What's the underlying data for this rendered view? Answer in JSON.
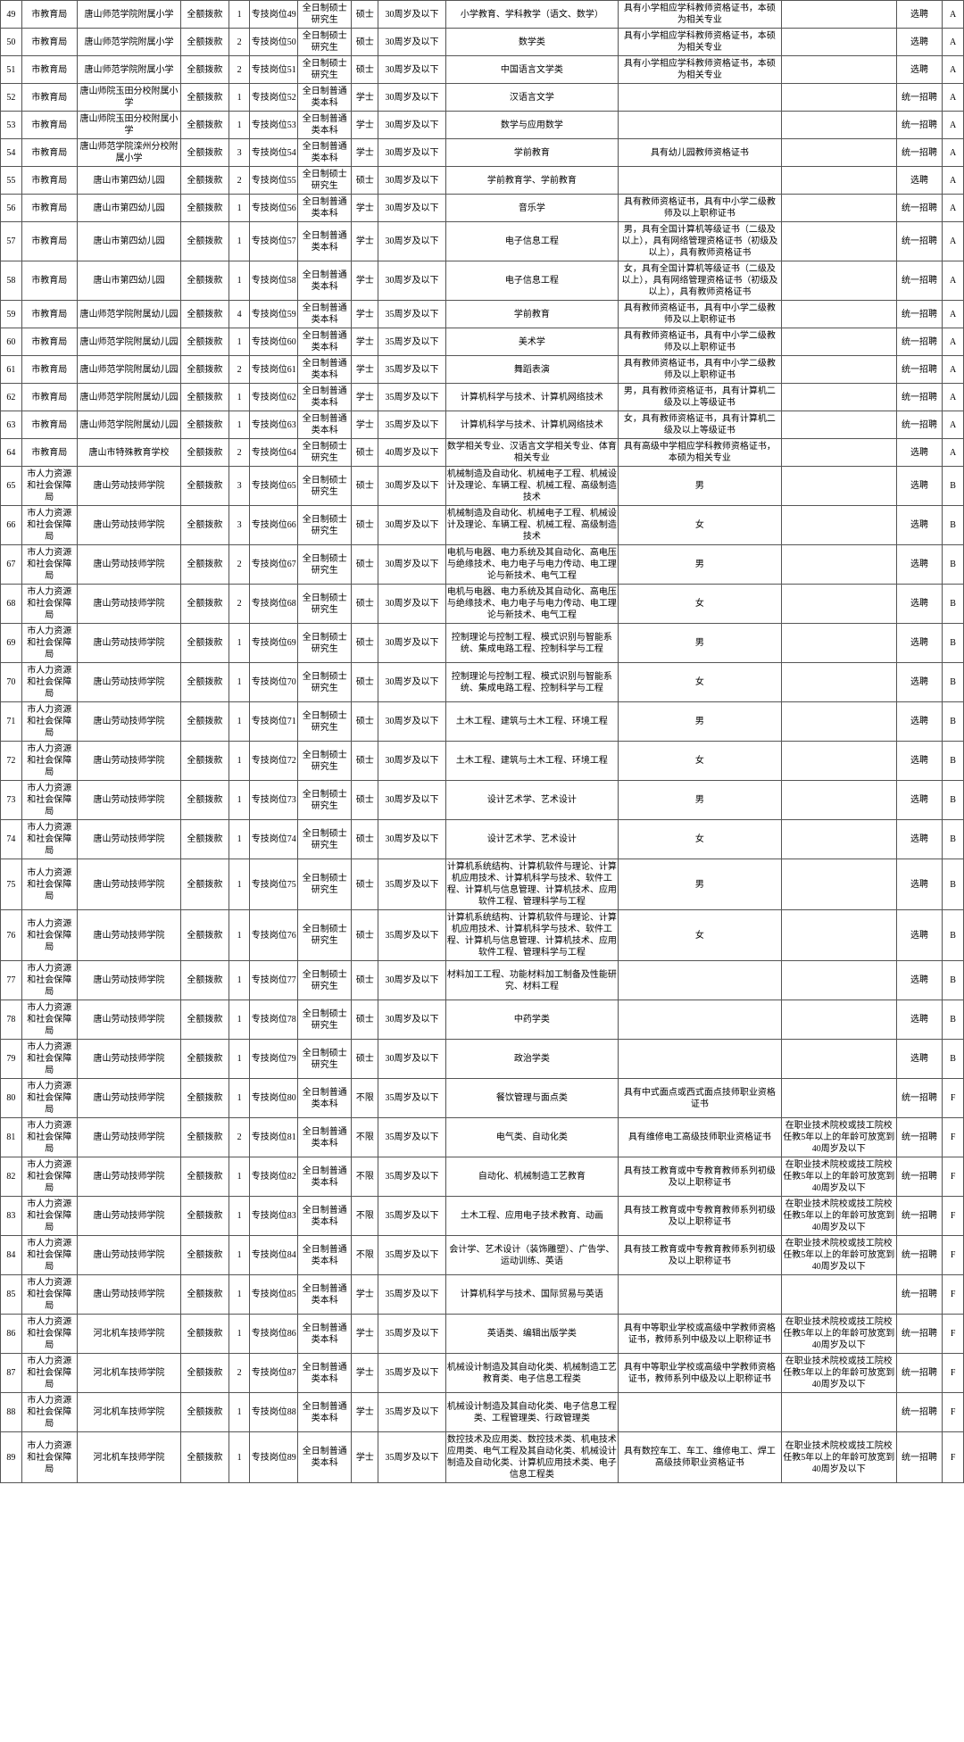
{
  "rows": [
    {
      "n": "49",
      "d": "市教育局",
      "u": "唐山师范学院附属小学",
      "f": "全额拨款",
      "c": "1",
      "p": "专技岗位49",
      "e": "全日制硕士研究生",
      "deg": "硕士",
      "age": "30周岁及以下",
      "maj": "小学教育、学科教学（语文、数学）",
      "req": "具有小学相应学科教师资格证书，本硕为相关专业",
      "rem": "",
      "m": "选聘",
      "g": "A"
    },
    {
      "n": "50",
      "d": "市教育局",
      "u": "唐山师范学院附属小学",
      "f": "全额拨款",
      "c": "2",
      "p": "专技岗位50",
      "e": "全日制硕士研究生",
      "deg": "硕士",
      "age": "30周岁及以下",
      "maj": "数学类",
      "req": "具有小学相应学科教师资格证书，本硕为相关专业",
      "rem": "",
      "m": "选聘",
      "g": "A"
    },
    {
      "n": "51",
      "d": "市教育局",
      "u": "唐山师范学院附属小学",
      "f": "全额拨款",
      "c": "2",
      "p": "专技岗位51",
      "e": "全日制硕士研究生",
      "deg": "硕士",
      "age": "30周岁及以下",
      "maj": "中国语言文学类",
      "req": "具有小学相应学科教师资格证书，本硕为相关专业",
      "rem": "",
      "m": "选聘",
      "g": "A"
    },
    {
      "n": "52",
      "d": "市教育局",
      "u": "唐山师院玉田分校附属小学",
      "f": "全额拨款",
      "c": "1",
      "p": "专技岗位52",
      "e": "全日制普通类本科",
      "deg": "学士",
      "age": "30周岁及以下",
      "maj": "汉语言文学",
      "req": "",
      "rem": "",
      "m": "统一招聘",
      "g": "A"
    },
    {
      "n": "53",
      "d": "市教育局",
      "u": "唐山师院玉田分校附属小学",
      "f": "全额拨款",
      "c": "1",
      "p": "专技岗位53",
      "e": "全日制普通类本科",
      "deg": "学士",
      "age": "30周岁及以下",
      "maj": "数学与应用数学",
      "req": "",
      "rem": "",
      "m": "统一招聘",
      "g": "A"
    },
    {
      "n": "54",
      "d": "市教育局",
      "u": "唐山师范学院滦州分校附属小学",
      "f": "全额拨款",
      "c": "3",
      "p": "专技岗位54",
      "e": "全日制普通类本科",
      "deg": "学士",
      "age": "30周岁及以下",
      "maj": "学前教育",
      "req": "具有幼儿园教师资格证书",
      "rem": "",
      "m": "统一招聘",
      "g": "A"
    },
    {
      "n": "55",
      "d": "市教育局",
      "u": "唐山市第四幼儿园",
      "f": "全额拨款",
      "c": "2",
      "p": "专技岗位55",
      "e": "全日制硕士研究生",
      "deg": "硕士",
      "age": "30周岁及以下",
      "maj": "学前教育学、学前教育",
      "req": "",
      "rem": "",
      "m": "选聘",
      "g": "A"
    },
    {
      "n": "56",
      "d": "市教育局",
      "u": "唐山市第四幼儿园",
      "f": "全额拨款",
      "c": "1",
      "p": "专技岗位56",
      "e": "全日制普通类本科",
      "deg": "学士",
      "age": "30周岁及以下",
      "maj": "音乐学",
      "req": "具有教师资格证书，具有中小学二级教师及以上职称证书",
      "rem": "",
      "m": "统一招聘",
      "g": "A"
    },
    {
      "n": "57",
      "d": "市教育局",
      "u": "唐山市第四幼儿园",
      "f": "全额拨款",
      "c": "1",
      "p": "专技岗位57",
      "e": "全日制普通类本科",
      "deg": "学士",
      "age": "30周岁及以下",
      "maj": "电子信息工程",
      "req": "男，具有全国计算机等级证书（二级及以上），具有网络管理资格证书（初级及以上），具有教师资格证书",
      "rem": "",
      "m": "统一招聘",
      "g": "A"
    },
    {
      "n": "58",
      "d": "市教育局",
      "u": "唐山市第四幼儿园",
      "f": "全额拨款",
      "c": "1",
      "p": "专技岗位58",
      "e": "全日制普通类本科",
      "deg": "学士",
      "age": "30周岁及以下",
      "maj": "电子信息工程",
      "req": "女，具有全国计算机等级证书（二级及以上），具有网络管理资格证书（初级及以上），具有教师资格证书",
      "rem": "",
      "m": "统一招聘",
      "g": "A"
    },
    {
      "n": "59",
      "d": "市教育局",
      "u": "唐山师范学院附属幼儿园",
      "f": "全额拨款",
      "c": "4",
      "p": "专技岗位59",
      "e": "全日制普通类本科",
      "deg": "学士",
      "age": "35周岁及以下",
      "maj": "学前教育",
      "req": "具有教师资格证书，具有中小学二级教师及以上职称证书",
      "rem": "",
      "m": "统一招聘",
      "g": "A"
    },
    {
      "n": "60",
      "d": "市教育局",
      "u": "唐山师范学院附属幼儿园",
      "f": "全额拨款",
      "c": "1",
      "p": "专技岗位60",
      "e": "全日制普通类本科",
      "deg": "学士",
      "age": "35周岁及以下",
      "maj": "美术学",
      "req": "具有教师资格证书，具有中小学二级教师及以上职称证书",
      "rem": "",
      "m": "统一招聘",
      "g": "A"
    },
    {
      "n": "61",
      "d": "市教育局",
      "u": "唐山师范学院附属幼儿园",
      "f": "全额拨款",
      "c": "2",
      "p": "专技岗位61",
      "e": "全日制普通类本科",
      "deg": "学士",
      "age": "35周岁及以下",
      "maj": "舞蹈表演",
      "req": "具有教师资格证书，具有中小学二级教师及以上职称证书",
      "rem": "",
      "m": "统一招聘",
      "g": "A"
    },
    {
      "n": "62",
      "d": "市教育局",
      "u": "唐山师范学院附属幼儿园",
      "f": "全额拨款",
      "c": "1",
      "p": "专技岗位62",
      "e": "全日制普通类本科",
      "deg": "学士",
      "age": "35周岁及以下",
      "maj": "计算机科学与技术、计算机网络技术",
      "req": "男，具有教师资格证书，具有计算机二级及以上等级证书",
      "rem": "",
      "m": "统一招聘",
      "g": "A"
    },
    {
      "n": "63",
      "d": "市教育局",
      "u": "唐山师范学院附属幼儿园",
      "f": "全额拨款",
      "c": "1",
      "p": "专技岗位63",
      "e": "全日制普通类本科",
      "deg": "学士",
      "age": "35周岁及以下",
      "maj": "计算机科学与技术、计算机网络技术",
      "req": "女，具有教师资格证书，具有计算机二级及以上等级证书",
      "rem": "",
      "m": "统一招聘",
      "g": "A"
    },
    {
      "n": "64",
      "d": "市教育局",
      "u": "唐山市特殊教育学校",
      "f": "全额拨款",
      "c": "2",
      "p": "专技岗位64",
      "e": "全日制硕士研究生",
      "deg": "硕士",
      "age": "40周岁及以下",
      "maj": "数学相关专业、汉语言文学相关专业、体育相关专业",
      "req": "具有高级中学相应学科教师资格证书，本硕为相关专业",
      "rem": "",
      "m": "选聘",
      "g": "A"
    },
    {
      "n": "65",
      "d": "市人力资源和社会保障局",
      "u": "唐山劳动技师学院",
      "f": "全额拨款",
      "c": "3",
      "p": "专技岗位65",
      "e": "全日制硕士研究生",
      "deg": "硕士",
      "age": "30周岁及以下",
      "maj": "机械制造及自动化、机械电子工程、机械设计及理论、车辆工程、机械工程、高级制造技术",
      "req": "男",
      "rem": "",
      "m": "选聘",
      "g": "B"
    },
    {
      "n": "66",
      "d": "市人力资源和社会保障局",
      "u": "唐山劳动技师学院",
      "f": "全额拨款",
      "c": "3",
      "p": "专技岗位66",
      "e": "全日制硕士研究生",
      "deg": "硕士",
      "age": "30周岁及以下",
      "maj": "机械制造及自动化、机械电子工程、机械设计及理论、车辆工程、机械工程、高级制造技术",
      "req": "女",
      "rem": "",
      "m": "选聘",
      "g": "B"
    },
    {
      "n": "67",
      "d": "市人力资源和社会保障局",
      "u": "唐山劳动技师学院",
      "f": "全额拨款",
      "c": "2",
      "p": "专技岗位67",
      "e": "全日制硕士研究生",
      "deg": "硕士",
      "age": "30周岁及以下",
      "maj": "电机与电器、电力系统及其自动化、高电压与绝缘技术、电力电子与电力传动、电工理论与新技术、电气工程",
      "req": "男",
      "rem": "",
      "m": "选聘",
      "g": "B"
    },
    {
      "n": "68",
      "d": "市人力资源和社会保障局",
      "u": "唐山劳动技师学院",
      "f": "全额拨款",
      "c": "2",
      "p": "专技岗位68",
      "e": "全日制硕士研究生",
      "deg": "硕士",
      "age": "30周岁及以下",
      "maj": "电机与电器、电力系统及其自动化、高电压与绝缘技术、电力电子与电力传动、电工理论与新技术、电气工程",
      "req": "女",
      "rem": "",
      "m": "选聘",
      "g": "B"
    },
    {
      "n": "69",
      "d": "市人力资源和社会保障局",
      "u": "唐山劳动技师学院",
      "f": "全额拨款",
      "c": "1",
      "p": "专技岗位69",
      "e": "全日制硕士研究生",
      "deg": "硕士",
      "age": "30周岁及以下",
      "maj": "控制理论与控制工程、模式识别与智能系统、集成电路工程、控制科学与工程",
      "req": "男",
      "rem": "",
      "m": "选聘",
      "g": "B"
    },
    {
      "n": "70",
      "d": "市人力资源和社会保障局",
      "u": "唐山劳动技师学院",
      "f": "全额拨款",
      "c": "1",
      "p": "专技岗位70",
      "e": "全日制硕士研究生",
      "deg": "硕士",
      "age": "30周岁及以下",
      "maj": "控制理论与控制工程、模式识别与智能系统、集成电路工程、控制科学与工程",
      "req": "女",
      "rem": "",
      "m": "选聘",
      "g": "B"
    },
    {
      "n": "71",
      "d": "市人力资源和社会保障局",
      "u": "唐山劳动技师学院",
      "f": "全额拨款",
      "c": "1",
      "p": "专技岗位71",
      "e": "全日制硕士研究生",
      "deg": "硕士",
      "age": "30周岁及以下",
      "maj": "土木工程、建筑与土木工程、环境工程",
      "req": "男",
      "rem": "",
      "m": "选聘",
      "g": "B"
    },
    {
      "n": "72",
      "d": "市人力资源和社会保障局",
      "u": "唐山劳动技师学院",
      "f": "全额拨款",
      "c": "1",
      "p": "专技岗位72",
      "e": "全日制硕士研究生",
      "deg": "硕士",
      "age": "30周岁及以下",
      "maj": "土木工程、建筑与土木工程、环境工程",
      "req": "女",
      "rem": "",
      "m": "选聘",
      "g": "B"
    },
    {
      "n": "73",
      "d": "市人力资源和社会保障局",
      "u": "唐山劳动技师学院",
      "f": "全额拨款",
      "c": "1",
      "p": "专技岗位73",
      "e": "全日制硕士研究生",
      "deg": "硕士",
      "age": "30周岁及以下",
      "maj": "设计艺术学、艺术设计",
      "req": "男",
      "rem": "",
      "m": "选聘",
      "g": "B"
    },
    {
      "n": "74",
      "d": "市人力资源和社会保障局",
      "u": "唐山劳动技师学院",
      "f": "全额拨款",
      "c": "1",
      "p": "专技岗位74",
      "e": "全日制硕士研究生",
      "deg": "硕士",
      "age": "30周岁及以下",
      "maj": "设计艺术学、艺术设计",
      "req": "女",
      "rem": "",
      "m": "选聘",
      "g": "B"
    },
    {
      "n": "75",
      "d": "市人力资源和社会保障局",
      "u": "唐山劳动技师学院",
      "f": "全额拨款",
      "c": "1",
      "p": "专技岗位75",
      "e": "全日制硕士研究生",
      "deg": "硕士",
      "age": "35周岁及以下",
      "maj": "计算机系统结构、计算机软件与理论、计算机应用技术、计算机科学与技术、软件工程、计算机与信息管理、计算机技术、应用软件工程、管理科学与工程",
      "req": "男",
      "rem": "",
      "m": "选聘",
      "g": "B"
    },
    {
      "n": "76",
      "d": "市人力资源和社会保障局",
      "u": "唐山劳动技师学院",
      "f": "全额拨款",
      "c": "1",
      "p": "专技岗位76",
      "e": "全日制硕士研究生",
      "deg": "硕士",
      "age": "35周岁及以下",
      "maj": "计算机系统结构、计算机软件与理论、计算机应用技术、计算机科学与技术、软件工程、计算机与信息管理、计算机技术、应用软件工程、管理科学与工程",
      "req": "女",
      "rem": "",
      "m": "选聘",
      "g": "B"
    },
    {
      "n": "77",
      "d": "市人力资源和社会保障局",
      "u": "唐山劳动技师学院",
      "f": "全额拨款",
      "c": "1",
      "p": "专技岗位77",
      "e": "全日制硕士研究生",
      "deg": "硕士",
      "age": "30周岁及以下",
      "maj": "材料加工工程、功能材料加工制备及性能研究、材料工程",
      "req": "",
      "rem": "",
      "m": "选聘",
      "g": "B"
    },
    {
      "n": "78",
      "d": "市人力资源和社会保障局",
      "u": "唐山劳动技师学院",
      "f": "全额拨款",
      "c": "1",
      "p": "专技岗位78",
      "e": "全日制硕士研究生",
      "deg": "硕士",
      "age": "30周岁及以下",
      "maj": "中药学类",
      "req": "",
      "rem": "",
      "m": "选聘",
      "g": "B"
    },
    {
      "n": "79",
      "d": "市人力资源和社会保障局",
      "u": "唐山劳动技师学院",
      "f": "全额拨款",
      "c": "1",
      "p": "专技岗位79",
      "e": "全日制硕士研究生",
      "deg": "硕士",
      "age": "30周岁及以下",
      "maj": "政治学类",
      "req": "",
      "rem": "",
      "m": "选聘",
      "g": "B"
    },
    {
      "n": "80",
      "d": "市人力资源和社会保障局",
      "u": "唐山劳动技师学院",
      "f": "全额拨款",
      "c": "1",
      "p": "专技岗位80",
      "e": "全日制普通类本科",
      "deg": "不限",
      "age": "35周岁及以下",
      "maj": "餐饮管理与面点类",
      "req": "具有中式面点或西式面点技师职业资格证书",
      "rem": "",
      "m": "统一招聘",
      "g": "F"
    },
    {
      "n": "81",
      "d": "市人力资源和社会保障局",
      "u": "唐山劳动技师学院",
      "f": "全额拨款",
      "c": "2",
      "p": "专技岗位81",
      "e": "全日制普通类本科",
      "deg": "不限",
      "age": "35周岁及以下",
      "maj": "电气类、自动化类",
      "req": "具有维修电工高级技师职业资格证书",
      "rem": "在职业技术院校或技工院校任教5年以上的年龄可放宽到40周岁及以下",
      "m": "统一招聘",
      "g": "F"
    },
    {
      "n": "82",
      "d": "市人力资源和社会保障局",
      "u": "唐山劳动技师学院",
      "f": "全额拨款",
      "c": "1",
      "p": "专技岗位82",
      "e": "全日制普通类本科",
      "deg": "不限",
      "age": "35周岁及以下",
      "maj": "自动化、机械制造工艺教育",
      "req": "具有技工教育或中专教育教师系列初级及以上职称证书",
      "rem": "在职业技术院校或技工院校任教5年以上的年龄可放宽到40周岁及以下",
      "m": "统一招聘",
      "g": "F"
    },
    {
      "n": "83",
      "d": "市人力资源和社会保障局",
      "u": "唐山劳动技师学院",
      "f": "全额拨款",
      "c": "1",
      "p": "专技岗位83",
      "e": "全日制普通类本科",
      "deg": "不限",
      "age": "35周岁及以下",
      "maj": "土木工程、应用电子技术教育、动画",
      "req": "具有技工教育或中专教育教师系列初级及以上职称证书",
      "rem": "在职业技术院校或技工院校任教5年以上的年龄可放宽到40周岁及以下",
      "m": "统一招聘",
      "g": "F"
    },
    {
      "n": "84",
      "d": "市人力资源和社会保障局",
      "u": "唐山劳动技师学院",
      "f": "全额拨款",
      "c": "1",
      "p": "专技岗位84",
      "e": "全日制普通类本科",
      "deg": "不限",
      "age": "35周岁及以下",
      "maj": "会计学、艺术设计（装饰雕塑）、广告学、运动训练、英语",
      "req": "具有技工教育或中专教育教师系列初级及以上职称证书",
      "rem": "在职业技术院校或技工院校任教5年以上的年龄可放宽到40周岁及以下",
      "m": "统一招聘",
      "g": "F"
    },
    {
      "n": "85",
      "d": "市人力资源和社会保障局",
      "u": "唐山劳动技师学院",
      "f": "全额拨款",
      "c": "1",
      "p": "专技岗位85",
      "e": "全日制普通类本科",
      "deg": "学士",
      "age": "35周岁及以下",
      "maj": "计算机科学与技术、国际贸易与英语",
      "req": "",
      "rem": "",
      "m": "统一招聘",
      "g": "F"
    },
    {
      "n": "86",
      "d": "市人力资源和社会保障局",
      "u": "河北机车技师学院",
      "f": "全额拨款",
      "c": "1",
      "p": "专技岗位86",
      "e": "全日制普通类本科",
      "deg": "学士",
      "age": "35周岁及以下",
      "maj": "英语类、编辑出版学类",
      "req": "具有中等职业学校或高级中学教师资格证书，教师系列中级及以上职称证书",
      "rem": "在职业技术院校或技工院校任教5年以上的年龄可放宽到40周岁及以下",
      "m": "统一招聘",
      "g": "F"
    },
    {
      "n": "87",
      "d": "市人力资源和社会保障局",
      "u": "河北机车技师学院",
      "f": "全额拨款",
      "c": "2",
      "p": "专技岗位87",
      "e": "全日制普通类本科",
      "deg": "学士",
      "age": "35周岁及以下",
      "maj": "机械设计制造及其自动化类、机械制造工艺教育类、电子信息工程类",
      "req": "具有中等职业学校或高级中学教师资格证书，教师系列中级及以上职称证书",
      "rem": "在职业技术院校或技工院校任教5年以上的年龄可放宽到40周岁及以下",
      "m": "统一招聘",
      "g": "F"
    },
    {
      "n": "88",
      "d": "市人力资源和社会保障局",
      "u": "河北机车技师学院",
      "f": "全额拨款",
      "c": "1",
      "p": "专技岗位88",
      "e": "全日制普通类本科",
      "deg": "学士",
      "age": "35周岁及以下",
      "maj": "机械设计制造及其自动化类、电子信息工程类、工程管理类、行政管理类",
      "req": "",
      "rem": "",
      "m": "统一招聘",
      "g": "F"
    },
    {
      "n": "89",
      "d": "市人力资源和社会保障局",
      "u": "河北机车技师学院",
      "f": "全额拨款",
      "c": "1",
      "p": "专技岗位89",
      "e": "全日制普通类本科",
      "deg": "学士",
      "age": "35周岁及以下",
      "maj": "数控技术及应用类、数控技术类、机电技术应用类、电气工程及其自动化类、机械设计制造及自动化类、计算机应用技术类、电子信息工程类",
      "req": "具有数控车工、车工、维修电工、焊工高级技师职业资格证书",
      "rem": "在职业技术院校或技工院校任教5年以上的年龄可放宽到40周岁及以下",
      "m": "统一招聘",
      "g": "F"
    }
  ]
}
